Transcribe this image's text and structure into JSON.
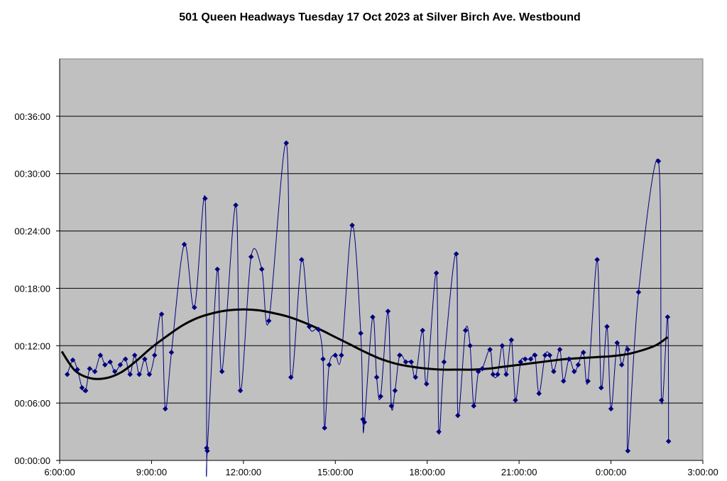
{
  "chart_data": {
    "type": "line",
    "title": "501 Queen Headways Tuesday 17 Oct 2023 at Silver Birch Ave. Westbound",
    "xlabel": "",
    "ylabel": "",
    "x_unit": "clock time (hours since 0:00 on 17 Oct; values past 24 are the next day)",
    "y_unit": "minutes",
    "xlim": [
      6,
      27
    ],
    "ylim": [
      0,
      42
    ],
    "x_ticks": [
      {
        "value": 6,
        "label": "6:00:00"
      },
      {
        "value": 9,
        "label": "9:00:00"
      },
      {
        "value": 12,
        "label": "12:00:00"
      },
      {
        "value": 15,
        "label": "15:00:00"
      },
      {
        "value": 18,
        "label": "18:00:00"
      },
      {
        "value": 21,
        "label": "21:00:00"
      },
      {
        "value": 24,
        "label": "0:00:00"
      },
      {
        "value": 27,
        "label": "3:00:00"
      }
    ],
    "y_ticks": [
      {
        "value": 0,
        "label": "00:00:00"
      },
      {
        "value": 6,
        "label": "00:06:00"
      },
      {
        "value": 12,
        "label": "00:12:00"
      },
      {
        "value": 18,
        "label": "00:18:00"
      },
      {
        "value": 24,
        "label": "00:24:00"
      },
      {
        "value": 30,
        "label": "00:30:00"
      },
      {
        "value": 36,
        "label": "00:36:00"
      }
    ],
    "grid": "horizontal",
    "legend": "none",
    "plot_background": "#c0c0c0",
    "series": [
      {
        "style": "smoothed line with diamond markers",
        "color": "#000080",
        "points": [
          [
            6.25,
            9.0
          ],
          [
            6.43,
            10.5
          ],
          [
            6.58,
            9.5
          ],
          [
            6.73,
            7.6
          ],
          [
            6.85,
            7.3
          ],
          [
            6.98,
            9.6
          ],
          [
            7.15,
            9.3
          ],
          [
            7.33,
            11.0
          ],
          [
            7.48,
            10.0
          ],
          [
            7.65,
            10.3
          ],
          [
            7.8,
            9.3
          ],
          [
            7.98,
            10.0
          ],
          [
            8.15,
            10.6
          ],
          [
            8.3,
            9.0
          ],
          [
            8.45,
            11.0
          ],
          [
            8.6,
            9.0
          ],
          [
            8.78,
            10.6
          ],
          [
            8.93,
            9.0
          ],
          [
            9.1,
            11.0
          ],
          [
            9.33,
            15.3
          ],
          [
            9.45,
            5.4
          ],
          [
            9.65,
            11.3
          ],
          [
            10.07,
            22.6
          ],
          [
            10.4,
            16.0
          ],
          [
            10.75,
            27.4
          ],
          [
            10.8,
            1.3
          ],
          [
            10.82,
            1.0
          ],
          [
            11.15,
            20.0
          ],
          [
            11.3,
            9.3
          ],
          [
            11.75,
            26.7
          ],
          [
            11.9,
            7.3
          ],
          [
            12.25,
            21.3
          ],
          [
            12.6,
            20.0
          ],
          [
            12.83,
            14.6
          ],
          [
            13.4,
            33.2
          ],
          [
            13.55,
            8.7
          ],
          [
            13.9,
            21.0
          ],
          [
            14.15,
            14.0
          ],
          [
            14.45,
            13.7
          ],
          [
            14.6,
            10.6
          ],
          [
            14.65,
            3.4
          ],
          [
            14.8,
            10.0
          ],
          [
            15.0,
            11.0
          ],
          [
            15.2,
            11.0
          ],
          [
            15.55,
            24.6
          ],
          [
            15.83,
            13.3
          ],
          [
            15.9,
            4.3
          ],
          [
            15.95,
            4.0
          ],
          [
            16.22,
            15.0
          ],
          [
            16.35,
            8.7
          ],
          [
            16.48,
            6.7
          ],
          [
            16.72,
            15.6
          ],
          [
            16.83,
            5.7
          ],
          [
            16.95,
            7.3
          ],
          [
            17.1,
            11.0
          ],
          [
            17.3,
            10.3
          ],
          [
            17.48,
            10.3
          ],
          [
            17.62,
            8.7
          ],
          [
            17.85,
            13.6
          ],
          [
            17.98,
            8.0
          ],
          [
            18.3,
            19.6
          ],
          [
            18.38,
            3.0
          ],
          [
            18.55,
            10.3
          ],
          [
            18.95,
            21.6
          ],
          [
            19.0,
            4.7
          ],
          [
            19.25,
            13.6
          ],
          [
            19.4,
            12.0
          ],
          [
            19.52,
            5.7
          ],
          [
            19.67,
            9.3
          ],
          [
            19.8,
            9.6
          ],
          [
            20.05,
            11.6
          ],
          [
            20.15,
            9.0
          ],
          [
            20.3,
            9.0
          ],
          [
            20.45,
            12.0
          ],
          [
            20.58,
            9.0
          ],
          [
            20.75,
            12.6
          ],
          [
            20.88,
            6.3
          ],
          [
            21.05,
            10.3
          ],
          [
            21.2,
            10.6
          ],
          [
            21.38,
            10.6
          ],
          [
            21.52,
            11.0
          ],
          [
            21.65,
            7.0
          ],
          [
            21.85,
            11.0
          ],
          [
            22.0,
            11.0
          ],
          [
            22.13,
            9.3
          ],
          [
            22.33,
            11.6
          ],
          [
            22.45,
            8.3
          ],
          [
            22.63,
            10.6
          ],
          [
            22.8,
            9.3
          ],
          [
            22.93,
            10.0
          ],
          [
            23.1,
            11.3
          ],
          [
            23.25,
            8.3
          ],
          [
            23.55,
            21.0
          ],
          [
            23.68,
            7.6
          ],
          [
            23.87,
            14.0
          ],
          [
            24.0,
            5.4
          ],
          [
            24.2,
            12.3
          ],
          [
            24.35,
            10.0
          ],
          [
            24.55,
            11.6
          ],
          [
            24.55,
            1.0
          ],
          [
            24.9,
            17.6
          ],
          [
            25.55,
            31.3
          ],
          [
            25.65,
            6.3
          ],
          [
            25.85,
            15.0
          ],
          [
            25.88,
            2.0
          ]
        ]
      },
      {
        "style": "trendline",
        "color": "#000000",
        "points": [
          [
            6.07,
            11.4
          ],
          [
            6.5,
            9.4
          ],
          [
            7.0,
            8.6
          ],
          [
            7.5,
            8.6
          ],
          [
            8.0,
            9.2
          ],
          [
            8.5,
            10.4
          ],
          [
            9.0,
            11.8
          ],
          [
            9.5,
            13.0
          ],
          [
            10.0,
            14.1
          ],
          [
            10.5,
            14.9
          ],
          [
            11.0,
            15.4
          ],
          [
            11.5,
            15.7
          ],
          [
            12.0,
            15.8
          ],
          [
            12.5,
            15.7
          ],
          [
            13.0,
            15.4
          ],
          [
            13.5,
            15.0
          ],
          [
            14.0,
            14.4
          ],
          [
            14.5,
            13.7
          ],
          [
            15.0,
            12.9
          ],
          [
            15.5,
            12.1
          ],
          [
            16.0,
            11.3
          ],
          [
            16.5,
            10.6
          ],
          [
            17.0,
            10.1
          ],
          [
            17.5,
            9.8
          ],
          [
            18.0,
            9.6
          ],
          [
            18.5,
            9.5
          ],
          [
            19.0,
            9.5
          ],
          [
            19.5,
            9.5
          ],
          [
            20.0,
            9.6
          ],
          [
            20.5,
            9.8
          ],
          [
            21.0,
            10.0
          ],
          [
            21.5,
            10.2
          ],
          [
            22.0,
            10.4
          ],
          [
            22.5,
            10.6
          ],
          [
            23.0,
            10.7
          ],
          [
            23.5,
            10.8
          ],
          [
            24.0,
            10.9
          ],
          [
            24.5,
            11.1
          ],
          [
            25.0,
            11.5
          ],
          [
            25.5,
            12.1
          ],
          [
            25.85,
            12.9
          ]
        ]
      }
    ]
  }
}
